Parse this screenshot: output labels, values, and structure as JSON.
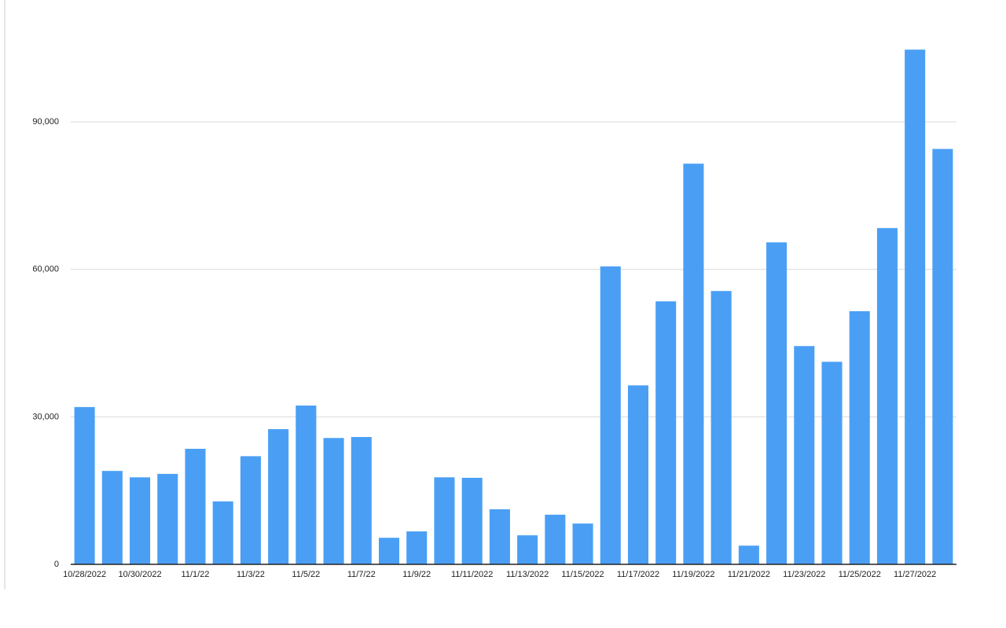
{
  "chart_data": {
    "type": "bar",
    "categories": [
      "10/28/2022",
      null,
      "10/30/2022",
      null,
      "11/1/22",
      null,
      "11/3/22",
      null,
      "11/5/22",
      null,
      "11/7/22",
      null,
      "11/9/22",
      null,
      "11/11/2022",
      null,
      "11/13/2022",
      null,
      "11/15/2022",
      null,
      "11/17/2022",
      null,
      "11/19/2022",
      null,
      "11/21/2022",
      null,
      "11/23/2022",
      null,
      "11/25/2022",
      null,
      "11/27/2022",
      null
    ],
    "values": [
      32000,
      19000,
      17700,
      18400,
      23500,
      12800,
      22000,
      27500,
      32300,
      25700,
      25900,
      5400,
      6700,
      17700,
      17600,
      11200,
      5900,
      10100,
      8300,
      60600,
      36400,
      53500,
      81500,
      55600,
      3800,
      65500,
      44400,
      41200,
      51500,
      68400,
      104700,
      84500
    ],
    "color": "#4a9ff5",
    "ylim": [
      0,
      110000
    ],
    "yticks": [
      0,
      {
        "value": 30000,
        "label": "30,000"
      },
      {
        "value": 60000,
        "label": "60,000"
      },
      {
        "value": 90000,
        "label": "90,000"
      }
    ],
    "grid": true
  }
}
